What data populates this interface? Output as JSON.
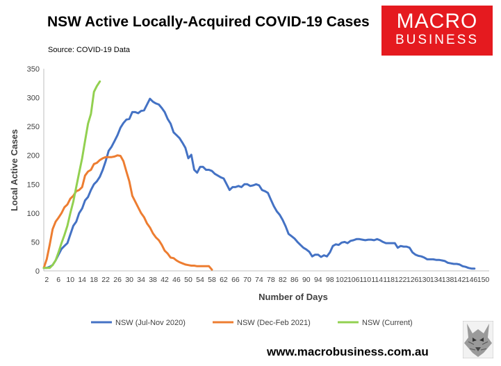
{
  "header": {
    "title": "NSW Active Locally-Acquired COVID-19 Cases",
    "source": "Source: COVID-19 Data"
  },
  "logo": {
    "line1": "MACRO",
    "line2": "BUSINESS"
  },
  "footer": {
    "website": "www.macrobusiness.com.au"
  },
  "colors": {
    "blue": "#4472c4",
    "orange": "#ed7d31",
    "green": "#92d050",
    "logo_red": "#e51a1f"
  },
  "chart_data": {
    "type": "line",
    "xlabel": "Number of Days",
    "ylabel": "Local Active Cases",
    "xlim": [
      1,
      152
    ],
    "ylim": [
      0,
      350
    ],
    "yticks": [
      0,
      50,
      100,
      150,
      200,
      250,
      300,
      350
    ],
    "xticks": [
      2,
      6,
      10,
      14,
      18,
      22,
      26,
      30,
      34,
      38,
      42,
      46,
      50,
      54,
      58,
      62,
      66,
      70,
      74,
      78,
      82,
      86,
      90,
      94,
      98,
      102,
      106,
      110,
      114,
      118,
      122,
      126,
      130,
      134,
      138,
      142,
      146,
      150
    ],
    "grid": false,
    "legend_position": "bottom",
    "series": [
      {
        "name": "NSW (Jul-Nov 2020)",
        "color": "#4472c4",
        "x": [
          1,
          2,
          3,
          4,
          5,
          6,
          7,
          8,
          9,
          10,
          11,
          12,
          13,
          14,
          15,
          16,
          17,
          18,
          19,
          20,
          21,
          22,
          23,
          24,
          25,
          26,
          27,
          28,
          29,
          30,
          31,
          32,
          33,
          34,
          35,
          36,
          37,
          38,
          39,
          40,
          41,
          42,
          43,
          44,
          45,
          46,
          47,
          48,
          49,
          50,
          51,
          52,
          53,
          54,
          55,
          56,
          57,
          58,
          59,
          60,
          61,
          62,
          63,
          64,
          65,
          66,
          67,
          68,
          69,
          70,
          71,
          72,
          73,
          74,
          75,
          76,
          77,
          78,
          79,
          80,
          81,
          82,
          83,
          84,
          85,
          86,
          87,
          88,
          89,
          90,
          91,
          92,
          93,
          94,
          95,
          96,
          97,
          98,
          99,
          100,
          101,
          102,
          103,
          104,
          105,
          106,
          107,
          108,
          109,
          110,
          111,
          112,
          113,
          114,
          115,
          116,
          117,
          118,
          119,
          120,
          121,
          122,
          123,
          124,
          125,
          126,
          127,
          128,
          129,
          130,
          131,
          132,
          133,
          134,
          135,
          136,
          137,
          138,
          139,
          140,
          141,
          142,
          143,
          144,
          145,
          146,
          147
        ],
        "values": [
          5,
          5,
          7,
          10,
          18,
          28,
          38,
          43,
          48,
          63,
          78,
          85,
          100,
          108,
          122,
          128,
          140,
          150,
          155,
          163,
          175,
          190,
          208,
          215,
          225,
          235,
          248,
          256,
          262,
          263,
          275,
          275,
          273,
          277,
          278,
          288,
          298,
          293,
          290,
          288,
          282,
          275,
          263,
          255,
          240,
          235,
          230,
          222,
          213,
          195,
          201,
          175,
          170,
          180,
          180,
          175,
          175,
          173,
          168,
          165,
          162,
          160,
          150,
          140,
          145,
          145,
          147,
          145,
          150,
          150,
          147,
          148,
          150,
          148,
          140,
          138,
          135,
          123,
          112,
          103,
          97,
          88,
          77,
          64,
          60,
          56,
          50,
          45,
          40,
          37,
          33,
          25,
          28,
          28,
          24,
          27,
          25,
          32,
          43,
          46,
          45,
          49,
          50,
          48,
          52,
          53,
          55,
          55,
          54,
          53,
          54,
          54,
          53,
          55,
          53,
          50,
          48,
          48,
          48,
          48,
          40,
          43,
          42,
          42,
          40,
          32,
          28,
          26,
          25,
          23,
          20,
          20,
          20,
          19,
          19,
          18,
          17,
          14,
          13,
          12,
          12,
          11,
          8,
          7,
          5,
          4,
          4
        ]
      },
      {
        "name": "NSW (Dec-Feb 2021)",
        "color": "#ed7d31",
        "x": [
          1,
          2,
          3,
          4,
          5,
          6,
          7,
          8,
          9,
          10,
          11,
          12,
          13,
          14,
          15,
          16,
          17,
          18,
          19,
          20,
          21,
          22,
          23,
          24,
          25,
          26,
          27,
          28,
          29,
          30,
          31,
          32,
          33,
          34,
          35,
          36,
          37,
          38,
          39,
          40,
          41,
          42,
          43,
          44,
          45,
          46,
          47,
          48,
          49,
          50,
          51,
          52,
          53,
          54,
          55,
          56,
          57,
          58
        ],
        "values": [
          5,
          20,
          45,
          72,
          85,
          92,
          100,
          110,
          115,
          125,
          130,
          138,
          140,
          145,
          165,
          172,
          175,
          185,
          187,
          192,
          195,
          197,
          197,
          197,
          198,
          200,
          199,
          190,
          172,
          155,
          130,
          120,
          110,
          100,
          93,
          82,
          75,
          65,
          58,
          53,
          45,
          35,
          30,
          23,
          22,
          18,
          15,
          13,
          11,
          10,
          9,
          9,
          8,
          8,
          8,
          8,
          8,
          2
        ]
      },
      {
        "name": "NSW (Current)",
        "color": "#92d050",
        "x": [
          1,
          2,
          3,
          4,
          5,
          6,
          7,
          8,
          9,
          10,
          11,
          12,
          13,
          14,
          15,
          16,
          17,
          18,
          19,
          20
        ],
        "values": [
          5,
          5,
          5,
          10,
          18,
          32,
          48,
          62,
          78,
          100,
          120,
          145,
          170,
          195,
          225,
          255,
          272,
          310,
          320,
          328
        ]
      }
    ]
  }
}
